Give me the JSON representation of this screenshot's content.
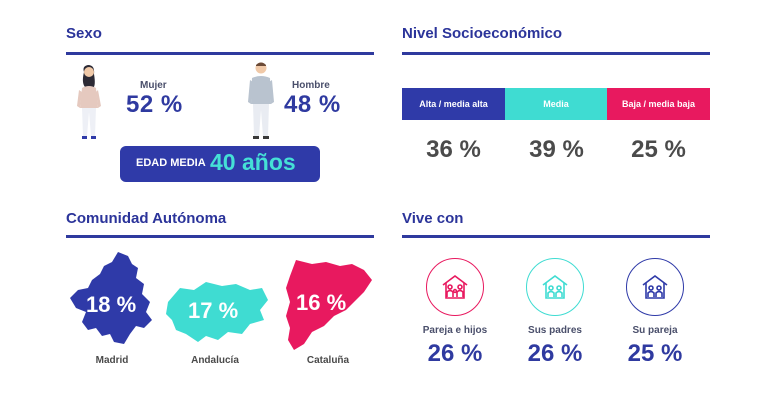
{
  "sexo": {
    "title": "Sexo",
    "mujer": {
      "label": "Mujer",
      "value": "52 %"
    },
    "hombre": {
      "label": "Hombre",
      "value": "48 %"
    },
    "edad_media": {
      "label": "EDAD MEDIA",
      "value": "40 años"
    }
  },
  "nse": {
    "title": "Nivel Socioeconómico",
    "bars": [
      {
        "label": "Alta / media alta",
        "value": "36 %",
        "color": "#2f3aa8"
      },
      {
        "label": "Media",
        "value": "39 %",
        "color": "#3fdcd2"
      },
      {
        "label": "Baja / media baja",
        "value": "25 %",
        "color": "#e8195f"
      }
    ]
  },
  "comunidad": {
    "title": "Comunidad Autónoma",
    "regions": [
      {
        "name": "Madrid",
        "value": "18 %",
        "color": "#2f3aa8"
      },
      {
        "name": "Andalucía",
        "value": "17 %",
        "color": "#3fdcd2"
      },
      {
        "name": "Cataluña",
        "value": "16 %",
        "color": "#e8195f"
      }
    ]
  },
  "vive_con": {
    "title": "Vive con",
    "items": [
      {
        "label": "Pareja e hijos",
        "value": "26 %",
        "color": "#e8195f",
        "icon": "family-house-icon"
      },
      {
        "label": "Sus padres",
        "value": "26 %",
        "color": "#3fdcd2",
        "icon": "parents-house-icon"
      },
      {
        "label": "Su pareja",
        "value": "25 %",
        "color": "#2f3aa8",
        "icon": "couple-house-icon"
      }
    ]
  }
}
